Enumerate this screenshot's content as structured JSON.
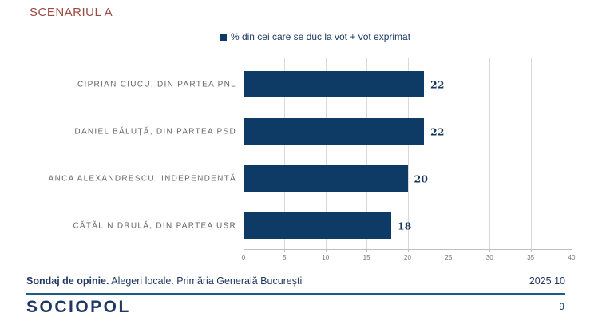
{
  "slide": {
    "title": "SCENARIUL A",
    "footer": {
      "bold": "Sondaj de opinie.",
      "regular": " Alegeri locale. Primăria Generală București",
      "date": "2025 10"
    },
    "logo": "SOCIOPOL",
    "page_number": "9"
  },
  "colors": {
    "bar": "#0e3a66",
    "navy_text": "#1f3864",
    "value_label": "#17375e",
    "title_red": "#9c4a43",
    "gridline": "#d9d9d9",
    "category_label": "#666666",
    "tick_label": "#757575",
    "footer_rule": "#1f5c83"
  },
  "chart_data": {
    "type": "bar",
    "orientation": "horizontal",
    "legend": "% din cei care se duc la vot + vot exprimat",
    "legend_position": "top-center",
    "categories": [
      "CIPRIAN CIUCU, DIN PARTEA PNL",
      "DANIEL BĂLUȚĂ, DIN PARTEA PSD",
      "ANCA ALEXANDRESCU, INDEPENDENTĂ",
      "CĂTĂLIN DRULĂ, DIN PARTEA USR"
    ],
    "values": [
      22,
      22,
      20,
      18
    ],
    "data_labels": [
      22,
      22,
      20,
      18
    ],
    "xlim": [
      0,
      40
    ],
    "xticks": [
      0,
      5,
      10,
      15,
      20,
      25,
      30,
      35,
      40
    ],
    "grid": true
  }
}
